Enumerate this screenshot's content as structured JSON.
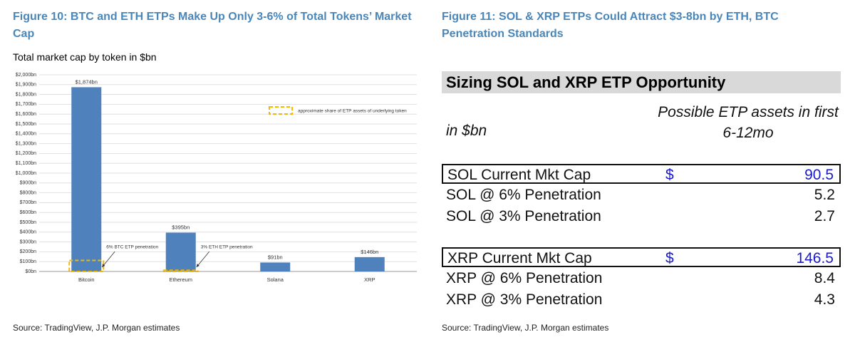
{
  "figure_10": {
    "title": "Figure 10: BTC and ETH ETPs Make Up Only 3-6% of Total Tokens’ Market Cap",
    "source": "Source: TradingView, J.P. Morgan estimates"
  },
  "chart_data": {
    "type": "bar",
    "subtitle": "Total market cap by token in $bn",
    "categories": [
      "Bitcoin",
      "Ethereum",
      "Solana",
      "XRP"
    ],
    "values": [
      1874,
      395,
      91,
      146
    ],
    "value_labels": [
      "$1,874bn",
      "$395bn",
      "$91bn",
      "$146bn"
    ],
    "color": "#4f81bd",
    "overlay": {
      "name": "approximate share of ETP assets of underlying token",
      "color": "#f5b800",
      "values": [
        112,
        12,
        null,
        null
      ],
      "labels": [
        "6% BTC ETP penetration",
        "3% ETH ETP penetration",
        null,
        null
      ]
    },
    "ylim": [
      0,
      2000
    ],
    "yticks": [
      {
        "value": 0,
        "label": "$0bn"
      },
      {
        "value": 100,
        "label": "$100bn"
      },
      {
        "value": 200,
        "label": "$200bn"
      },
      {
        "value": 300,
        "label": "$300bn"
      },
      {
        "value": 400,
        "label": "$400bn"
      },
      {
        "value": 500,
        "label": "$500bn"
      },
      {
        "value": 600,
        "label": "$600bn"
      },
      {
        "value": 700,
        "label": "$700bn"
      },
      {
        "value": 800,
        "label": "$800bn"
      },
      {
        "value": 900,
        "label": "$900bn"
      },
      {
        "value": 1000,
        "label": "$1,000bn"
      },
      {
        "value": 1100,
        "label": "$1,100bn"
      },
      {
        "value": 1200,
        "label": "$1,200bn"
      },
      {
        "value": 1300,
        "label": "$1,300bn"
      },
      {
        "value": 1400,
        "label": "$1,400bn"
      },
      {
        "value": 1500,
        "label": "$1,500bn"
      },
      {
        "value": 1600,
        "label": "$1,600bn"
      },
      {
        "value": 1700,
        "label": "$1,700bn"
      },
      {
        "value": 1800,
        "label": "$1,800bn"
      },
      {
        "value": 1900,
        "label": "$1,900bn"
      },
      {
        "value": 2000,
        "label": "$2,000bn"
      }
    ],
    "grid": true
  },
  "figure_11": {
    "title": "Figure 11: SOL & XRP ETPs Could Attract $3-8bn by ETH, BTC Penetration Standards",
    "source": "Source: TradingView, J.P. Morgan estimates"
  },
  "table": {
    "title": "Sizing SOL and XRP ETP Opportunity",
    "unit_header": "in $bn",
    "value_header": "Possible ETP assets in first 6-12mo",
    "sections": [
      {
        "market_cap": {
          "label": "SOL Current Mkt Cap",
          "currency": "$",
          "value": 90.5
        },
        "rows": [
          {
            "label": "SOL @ 6% Penetration",
            "value": 5.2
          },
          {
            "label": "SOL @ 3% Penetration",
            "value": 2.7
          }
        ]
      },
      {
        "market_cap": {
          "label": "XRP Current Mkt Cap",
          "currency": "$",
          "value": 146.5
        },
        "rows": [
          {
            "label": "XRP @ 6% Penetration",
            "value": 8.4
          },
          {
            "label": "XRP @ 3% Penetration",
            "value": 4.3
          }
        ]
      }
    ]
  }
}
